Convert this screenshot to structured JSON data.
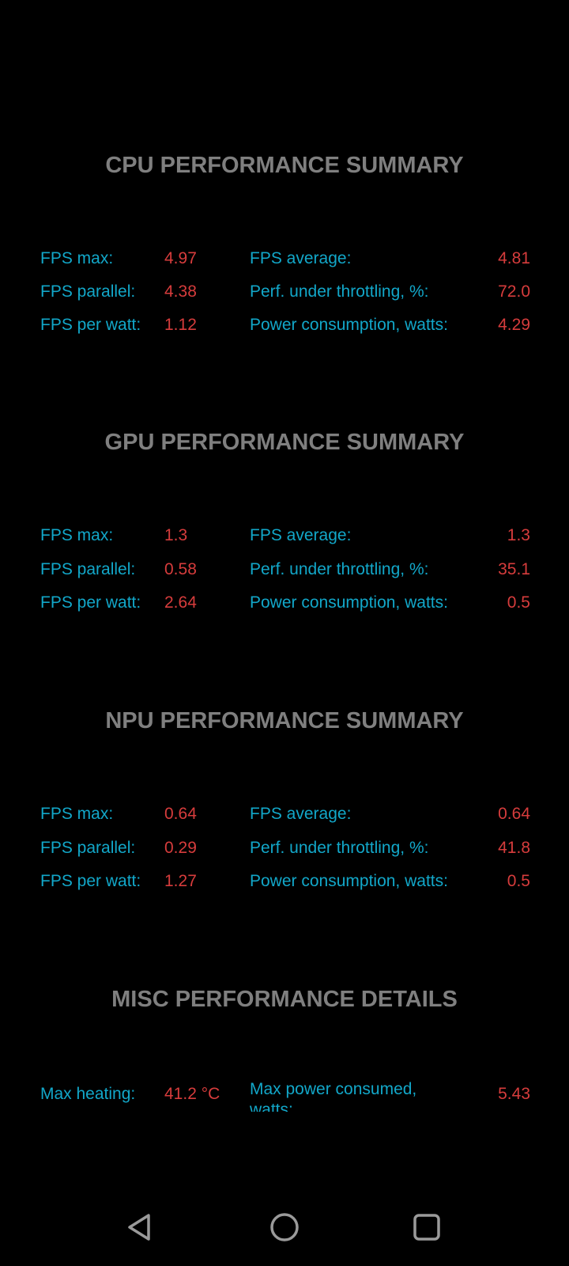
{
  "sections": [
    {
      "title": "CPU PERFORMANCE SUMMARY",
      "rows": [
        {
          "l1": "FPS max:",
          "v1": "4.97",
          "l2": "FPS average:",
          "v2": "4.81"
        },
        {
          "l1": "FPS parallel:",
          "v1": "4.38",
          "l2": "Perf. under throttling, %:",
          "v2": "72.0"
        },
        {
          "l1": "FPS per watt:",
          "v1": "1.12",
          "l2": "Power consumption, watts:",
          "v2": "4.29"
        }
      ]
    },
    {
      "title": "GPU PERFORMANCE SUMMARY",
      "rows": [
        {
          "l1": "FPS max:",
          "v1": "1.3",
          "l2": "FPS average:",
          "v2": "1.3"
        },
        {
          "l1": "FPS parallel:",
          "v1": "0.58",
          "l2": "Perf. under throttling, %:",
          "v2": "35.1"
        },
        {
          "l1": "FPS per watt:",
          "v1": "2.64",
          "l2": "Power consumption, watts:",
          "v2": "0.5"
        }
      ]
    },
    {
      "title": "NPU PERFORMANCE SUMMARY",
      "rows": [
        {
          "l1": "FPS max:",
          "v1": "0.64",
          "l2": "FPS average:",
          "v2": "0.64"
        },
        {
          "l1": "FPS parallel:",
          "v1": "0.29",
          "l2": "Perf. under throttling, %:",
          "v2": "41.8"
        },
        {
          "l1": "FPS per watt:",
          "v1": "1.27",
          "l2": "Power consumption, watts:",
          "v2": "0.5"
        }
      ]
    }
  ],
  "misc": {
    "title": "MISC PERFORMANCE DETAILS",
    "l1": "Max heating:",
    "v1": "41.2 °C",
    "l2": "Max power consumed, watts:",
    "v2": "5.43"
  },
  "colors": {
    "label": "#12a7c9",
    "value": "#d63c3c",
    "title": "#7f7f7f"
  },
  "navbar": [
    "back-icon",
    "home-icon",
    "recents-icon"
  ]
}
